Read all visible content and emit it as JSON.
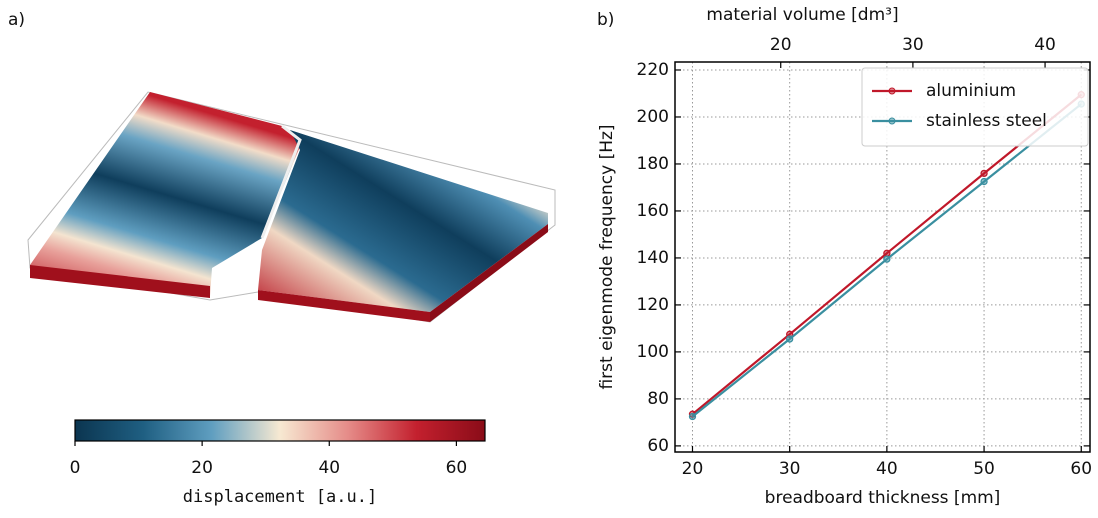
{
  "chart_data": [
    {
      "type": "colorbar",
      "label": "a)",
      "xlabel": "displacement [a.u.]",
      "clim": [
        0,
        64.5
      ],
      "ticks": [
        0,
        20,
        40,
        60
      ],
      "colormap": [
        "#0b3550",
        "#1f5f82",
        "#5f9ec0",
        "#f7e9d2",
        "#e58b88",
        "#c3202e",
        "#8a0c18"
      ]
    },
    {
      "type": "line",
      "label": "b)",
      "xlabel": "breadboard thickness [mm]",
      "ylabel": "first eigenmode frequency [Hz]",
      "x2label": "material volume [dm³]",
      "x": [
        20,
        30,
        40,
        50,
        60
      ],
      "xlim": [
        18.2,
        60.9
      ],
      "xticks": [
        20,
        30,
        40,
        50,
        60
      ],
      "ylim": [
        57.4,
        223.4
      ],
      "yticks": [
        60,
        80,
        100,
        120,
        140,
        160,
        180,
        200,
        220
      ],
      "x2lim": [
        12,
        43.4
      ],
      "x2ticks": [
        20,
        30,
        40
      ],
      "grid": true,
      "legend": "upper right",
      "series": [
        {
          "name": "aluminium",
          "color": "#c0182a",
          "values": [
            73.5,
            107.5,
            142,
            176,
            209.5
          ]
        },
        {
          "name": "stainless steel",
          "color": "#3a8fa0",
          "values": [
            72.5,
            105.5,
            139.5,
            172.5,
            205.5
          ]
        }
      ]
    }
  ]
}
